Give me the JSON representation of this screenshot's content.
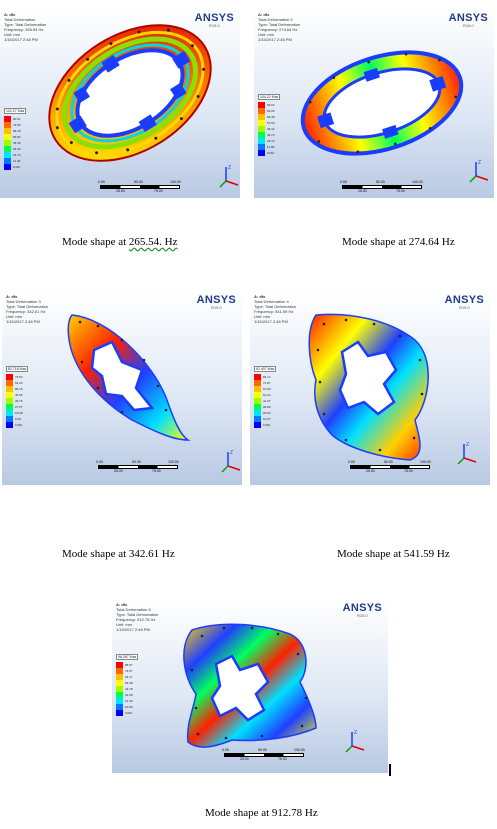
{
  "figures": [
    {
      "id": "mode1",
      "header": [
        "A: dfx",
        "Total Deformation",
        "Type: Total Deformation",
        "Frequency: 265.54 Hz",
        "Unit: mm",
        "1/15/2017 2:48 PM"
      ],
      "legend_max": "102.27 Max",
      "legend_values": [
        "90.91",
        "79.55",
        "68.18",
        "56.82",
        "45.45",
        "34.09",
        "22.73",
        "11.36",
        "0 Min"
      ],
      "scale_top": [
        "0.00",
        "50.00",
        "100.00 (mm)"
      ],
      "scale_bottom": [
        "25.00",
        "75.00"
      ],
      "caption_prefix": "Mode shape at ",
      "caption_value": "265.54. Hz"
    },
    {
      "id": "mode2",
      "header": [
        "A: dfx",
        "Total Deformation 2",
        "Type: Total Deformation",
        "Frequency: 274.64 Hz",
        "Unit: mm",
        "1/15/2017 2:48 PM"
      ],
      "legend_max": "104.22 Max",
      "legend_values": [
        "92.64",
        "81.06",
        "69.48",
        "57.90",
        "46.32",
        "34.74",
        "23.16",
        "11.58",
        "0 Min"
      ],
      "scale_top": [
        "0.00",
        "50.00",
        "100.00 (mm)"
      ],
      "scale_bottom": [
        "25.00",
        "75.00"
      ],
      "caption": "Mode shape at 274.64 Hz"
    },
    {
      "id": "mode3",
      "header": [
        "A: dfx",
        "Total Deformation 3",
        "Type: Total Deformation",
        "Frequency: 342.61 Hz",
        "Unit: mm",
        "1/15/2017 2:48 PM"
      ],
      "legend_max": "82.718 Max",
      "legend_values": [
        "73.53",
        "64.34",
        "55.15",
        "45.95",
        "36.76",
        "27.57",
        "18.38",
        "9.19",
        "0 Min"
      ],
      "scale_top": [
        "0.00",
        "50.00",
        "100.00 (mm)"
      ],
      "scale_bottom": [
        "25.00",
        "75.00"
      ],
      "caption": "Mode shape at 342.61 Hz"
    },
    {
      "id": "mode4",
      "header": [
        "A: dfx",
        "Total Deformation 4",
        "Type: Total Deformation",
        "Frequency: 541.59 Hz",
        "Unit: mm",
        "1/15/2017 2:48 PM"
      ],
      "legend_max": "92.407 Max",
      "legend_values": [
        "82.14",
        "71.87",
        "61.60",
        "51.34",
        "41.07",
        "30.80",
        "20.53",
        "10.27",
        "0 Min"
      ],
      "scale_top": [
        "0.00",
        "50.00",
        "100.00 (mm)"
      ],
      "scale_bottom": [
        "25.00",
        "75.00"
      ],
      "caption": "Mode shape at 541.59 Hz"
    },
    {
      "id": "mode5",
      "header": [
        "A: dfx",
        "Total Deformation 5",
        "Type: Total Deformation",
        "Frequency: 912.78 Hz",
        "Unit: mm",
        "1/15/2017 2:48 PM"
      ],
      "legend_max": "96.267 Max",
      "legend_values": [
        "85.57",
        "74.87",
        "64.17",
        "53.48",
        "42.78",
        "32.08",
        "21.39",
        "10.69",
        "0 Min"
      ],
      "scale_top": [
        "0.00",
        "50.00",
        "100.00 (mm)"
      ],
      "scale_bottom": [
        "25.00",
        "75.00"
      ],
      "caption": "Mode shape at 912.78 Hz"
    }
  ],
  "logo": {
    "brand": "ANSYS",
    "version": "R15.0"
  },
  "triad_labels": {
    "x": "X",
    "y": "Y",
    "z": "Z"
  },
  "colors": {
    "legend": [
      "#ff0000",
      "#ff6a00",
      "#ffc000",
      "#ffff00",
      "#9cff00",
      "#00ff4c",
      "#00e5ff",
      "#0078ff",
      "#0000ff"
    ]
  }
}
